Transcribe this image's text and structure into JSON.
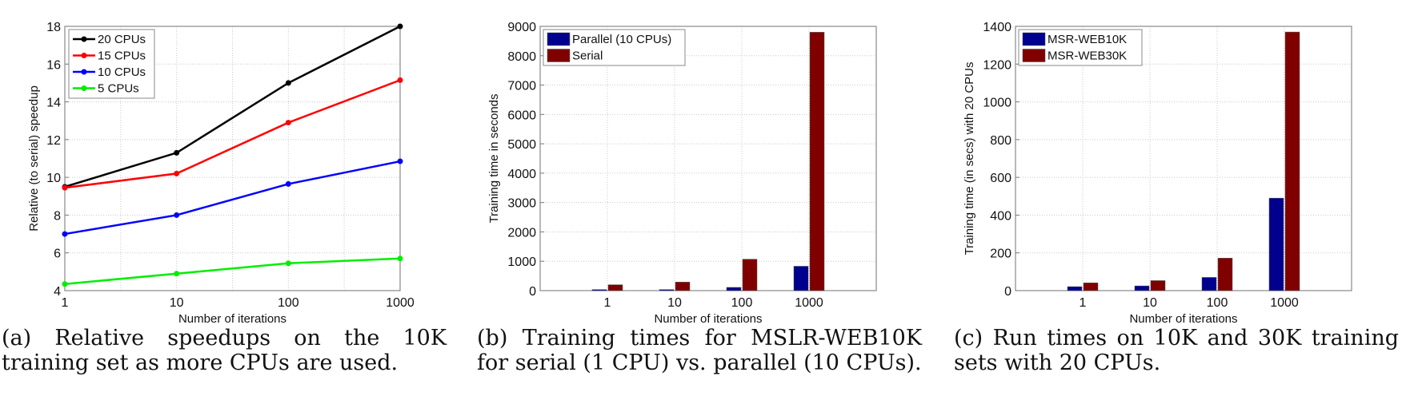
{
  "chart_data": [
    {
      "type": "line",
      "x": [
        1,
        10,
        100,
        1000
      ],
      "xscale": "log",
      "xlim": [
        1,
        1000
      ],
      "ylim": [
        4,
        18
      ],
      "xticks": [
        "1",
        "10",
        "100",
        "1000"
      ],
      "yticks": [
        "4",
        "6",
        "8",
        "10",
        "12",
        "14",
        "16",
        "18"
      ],
      "xlabel": "Number of iterations",
      "ylabel": "Relative (to serial) speedup",
      "grid": true,
      "legend_position": "top-left",
      "series": [
        {
          "name": "20 CPUs",
          "color": "#000000",
          "values": [
            9.5,
            11.3,
            15.0,
            18.0
          ]
        },
        {
          "name": "15 CPUs",
          "color": "#ff0000",
          "values": [
            9.45,
            10.2,
            12.9,
            15.15
          ]
        },
        {
          "name": "10 CPUs",
          "color": "#0000ff",
          "values": [
            7.0,
            8.0,
            9.65,
            10.85
          ]
        },
        {
          "name": "5 CPUs",
          "color": "#00ee00",
          "values": [
            4.35,
            4.9,
            5.45,
            5.7
          ]
        }
      ],
      "caption": "(a) Relative speedups on the 10K training set as more CPUs are used."
    },
    {
      "type": "bar",
      "categories": [
        "1",
        "10",
        "100",
        "1000"
      ],
      "ylim": [
        0,
        9000
      ],
      "yticks": [
        "0",
        "1000",
        "2000",
        "3000",
        "4000",
        "5000",
        "6000",
        "7000",
        "8000",
        "9000"
      ],
      "xlabel": "Number of iterations",
      "ylabel": "Training time in seconds",
      "grid": true,
      "legend_position": "top-left",
      "series": [
        {
          "name": "Parallel (10 CPUs)",
          "color": "#00008f",
          "values": [
            36,
            36,
            110,
            830
          ]
        },
        {
          "name": "Serial",
          "color": "#800000",
          "values": [
            200,
            290,
            1070,
            8800
          ]
        }
      ],
      "caption": "(b) Training times for MSLR-WEB10K for serial (1 CPU) vs. parallel (10 CPUs)."
    },
    {
      "type": "bar",
      "categories": [
        "1",
        "10",
        "100",
        "1000"
      ],
      "ylim": [
        0,
        1400
      ],
      "yticks": [
        "0",
        "200",
        "400",
        "600",
        "800",
        "1000",
        "1200",
        "1400"
      ],
      "xlabel": "Number of iterations",
      "ylabel": "Training time (in secs) with 20 CPUs",
      "grid": true,
      "legend_position": "top-left",
      "series": [
        {
          "name": "MSR-WEB10K",
          "color": "#00008f",
          "values": [
            21,
            25,
            70,
            490
          ]
        },
        {
          "name": "MSR-WEB30K",
          "color": "#800000",
          "values": [
            41,
            53,
            172,
            1370
          ]
        }
      ],
      "caption": "(c) Run times on 10K and 30K training sets with 20 CPUs."
    }
  ]
}
